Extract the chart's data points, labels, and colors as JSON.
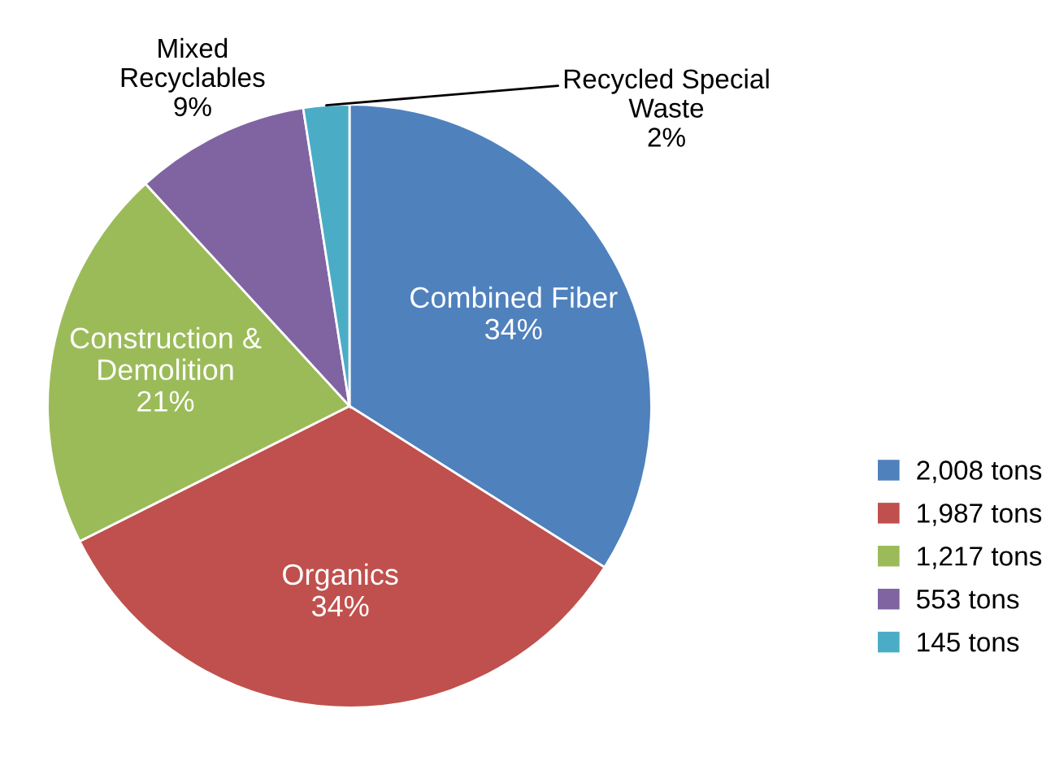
{
  "chart_data": {
    "type": "pie",
    "categories": [
      "2,008 tons",
      "1,987 tons",
      "1,217 tons",
      "553 tons",
      "145 tons"
    ],
    "values": [
      2008,
      1987,
      1217,
      553,
      145
    ],
    "colors": [
      "#4f81bd",
      "#c0504d",
      "#9bbb59",
      "#8064a2",
      "#4bacc6"
    ],
    "annotations": [
      "Combined Fiber\n34%",
      "Organics\n34%",
      "Construction &\nDemolition\n21%",
      "Mixed\nRecyclables\n9%",
      "Recycled Special\nWaste\n2%"
    ],
    "legend": "right"
  }
}
